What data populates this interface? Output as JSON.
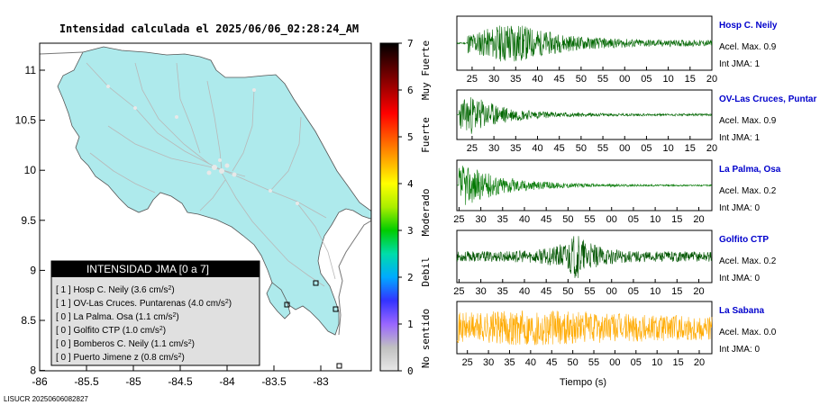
{
  "map": {
    "title": "Intensidad calculada el 2025/06/06_02:28:24_AM",
    "footer": "LISUCR 20250606082827",
    "x_ticks": [
      "-86",
      "-85.5",
      "-85",
      "-84.5",
      "-84",
      "-83.5",
      "-83"
    ],
    "y_ticks": [
      "11",
      "10.5",
      "10",
      "9.5",
      "9",
      "8.5",
      "8"
    ],
    "colors": {
      "land": "#aeeaec",
      "sea": "#ffffff",
      "roads": "#b8b8b8",
      "border": "#777777"
    }
  },
  "legend": {
    "title": "INTENSIDAD JMA [0 a 7]",
    "items": [
      {
        "level": "[ 1 ]",
        "name": "Hosp C. Neily",
        "accel": "3.6"
      },
      {
        "level": "[ 1 ]",
        "name": "OV-Las Cruces. Puntarenas",
        "accel": "4.0"
      },
      {
        "level": "[ 0 ]",
        "name": "La Palma. Osa",
        "accel": "1.1"
      },
      {
        "level": "[ 0 ]",
        "name": "Golfito CTP",
        "accel": "1.0"
      },
      {
        "level": "[ 0 ]",
        "name": "Bomberos C. Neily",
        "accel": "1.1"
      },
      {
        "level": "[ 0 ]",
        "name": "Puerto Jimene z",
        "accel": "0.8"
      }
    ]
  },
  "colorbar": {
    "ticks": [
      "7",
      "6",
      "5",
      "4",
      "3",
      "2",
      "1",
      "0"
    ],
    "labels": [
      "Muy Fuerte",
      "Fuerte",
      "Moderado",
      "Debil",
      "No sentido"
    ],
    "stops": [
      "#e8e8e8",
      "#c0c0c0",
      "#9966ff",
      "#3333ff",
      "#00aaff",
      "#00ddaa",
      "#00cc00",
      "#aaee00",
      "#ffff00",
      "#ffaa00",
      "#ff5500",
      "#ff0000",
      "#aa0000",
      "#550000",
      "#000000"
    ]
  },
  "chart_data": {
    "type": "line",
    "xlabel": "Tiempo (s)",
    "traces": [
      {
        "station": "Hosp C. Neily",
        "accel_label": "Acel. Max. 0.9",
        "jma_label": "Int JMA: 1",
        "color": "#006600",
        "ticks": [
          "25",
          "30",
          "35",
          "40",
          "45",
          "50",
          "55",
          "00",
          "05",
          "10",
          "15",
          "20"
        ],
        "x_start": 21.5,
        "x_end": 80,
        "onset": 24,
        "peak_t": 34,
        "amp": 0.95,
        "decay": 10,
        "floor": 0.12,
        "seed": 11
      },
      {
        "station": "OV-Las Cruces, Puntar",
        "accel_label": "Acel. Max. 0.9",
        "jma_label": "Int JMA: 1",
        "color": "#006600",
        "ticks": [
          "25",
          "30",
          "35",
          "40",
          "45",
          "50",
          "55",
          "00",
          "05",
          "10",
          "15",
          "20"
        ],
        "x_start": 21.5,
        "x_end": 80,
        "onset": 22,
        "peak_t": 25,
        "amp": 0.9,
        "decay": 8,
        "floor": 0.05,
        "seed": 23
      },
      {
        "station": "La Palma, Osa",
        "accel_label": "Acel. Max. 0.2",
        "jma_label": "Int JMA: 0",
        "color": "#007700",
        "ticks": [
          "25",
          "30",
          "35",
          "40",
          "45",
          "50",
          "55",
          "00",
          "05",
          "10",
          "15",
          "20"
        ],
        "x_start": 24.5,
        "x_end": 83,
        "onset": 25,
        "peak_t": 26,
        "amp": 0.95,
        "decay": 10,
        "floor": 0.03,
        "seed": 37
      },
      {
        "station": "Golfito CTP",
        "accel_label": "Acel. Max. 0.2",
        "jma_label": "Int JMA: 0",
        "color": "#005500",
        "ticks": [
          "25",
          "30",
          "35",
          "40",
          "45",
          "50",
          "55",
          "00",
          "05",
          "10",
          "15",
          "20"
        ],
        "x_start": 24.5,
        "x_end": 83,
        "onset": 24.5,
        "peak_t": 52,
        "amp": 1.0,
        "decay": 4,
        "floor": 0.22,
        "seed": 53
      },
      {
        "station": "La Sabana",
        "accel_label": "Acel. Max. 0.0",
        "jma_label": "Int JMA: 0",
        "color": "#ffaa00",
        "ticks": [
          "25",
          "30",
          "35",
          "40",
          "45",
          "50",
          "55",
          "00",
          "05",
          "10",
          "15",
          "20"
        ],
        "x_start": 22.5,
        "x_end": 83,
        "onset": 22.5,
        "peak_t": 41,
        "amp": 0.8,
        "decay": 30,
        "floor": 0.45,
        "seed": 71
      }
    ]
  }
}
